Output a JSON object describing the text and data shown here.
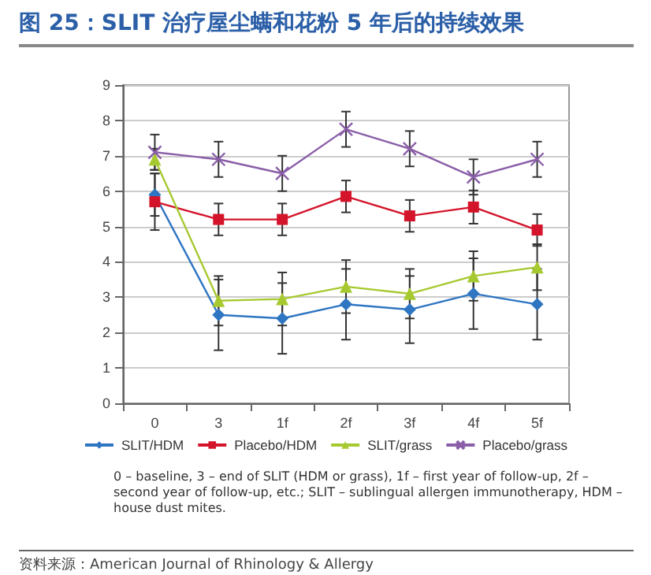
{
  "chart_data": {
    "type": "line",
    "title": "图 25：SLIT 治疗屋尘螨和花粉 5 年后的持续效果",
    "categories": [
      "0",
      "3",
      "1f",
      "2f",
      "3f",
      "4f",
      "5f"
    ],
    "ylim": [
      0,
      9
    ],
    "yticks": [
      0,
      1,
      2,
      3,
      4,
      5,
      6,
      7,
      8,
      9
    ],
    "grid": "y",
    "legend": "bottom",
    "series": [
      {
        "name": "SLIT/HDM",
        "color": "#2e75c2",
        "marker": "diamond",
        "values": [
          5.9,
          2.5,
          2.4,
          2.8,
          2.65,
          3.1,
          2.8
        ],
        "errors": [
          0.6,
          1,
          1,
          1,
          0.95,
          1,
          1
        ]
      },
      {
        "name": "Placebo/HDM",
        "color": "#d4142a",
        "marker": "square",
        "values": [
          5.7,
          5.2,
          5.2,
          5.85,
          5.3,
          5.55,
          4.9
        ],
        "errors": [
          0.8,
          0.45,
          0.45,
          0.45,
          0.45,
          0.47,
          0.45
        ]
      },
      {
        "name": "SLIT/grass",
        "color": "#a7c930",
        "marker": "triangle",
        "values": [
          6.9,
          2.9,
          2.95,
          3.3,
          3.1,
          3.6,
          3.85
        ],
        "errors": [
          0.3,
          0.7,
          0.75,
          0.75,
          0.7,
          0.7,
          0.65
        ]
      },
      {
        "name": "Placebo/grass",
        "color": "#8a5ea8",
        "marker": "cross",
        "values": [
          7.1,
          6.9,
          6.5,
          7.75,
          7.2,
          6.4,
          6.9
        ],
        "errors": [
          0.5,
          0.5,
          0.5,
          0.5,
          0.5,
          0.5,
          0.5
        ]
      }
    ],
    "annotations": [
      "0 – baseline, 3 – end of SLIT (HDM or grass), 1f – first year of follow-up, 2f – second year of follow-up, etc.; SLIT – sublingual allergen immunotherapy, HDM – house dust mites.",
      "资料来源：American Journal of Rhinology & Allergy"
    ]
  }
}
